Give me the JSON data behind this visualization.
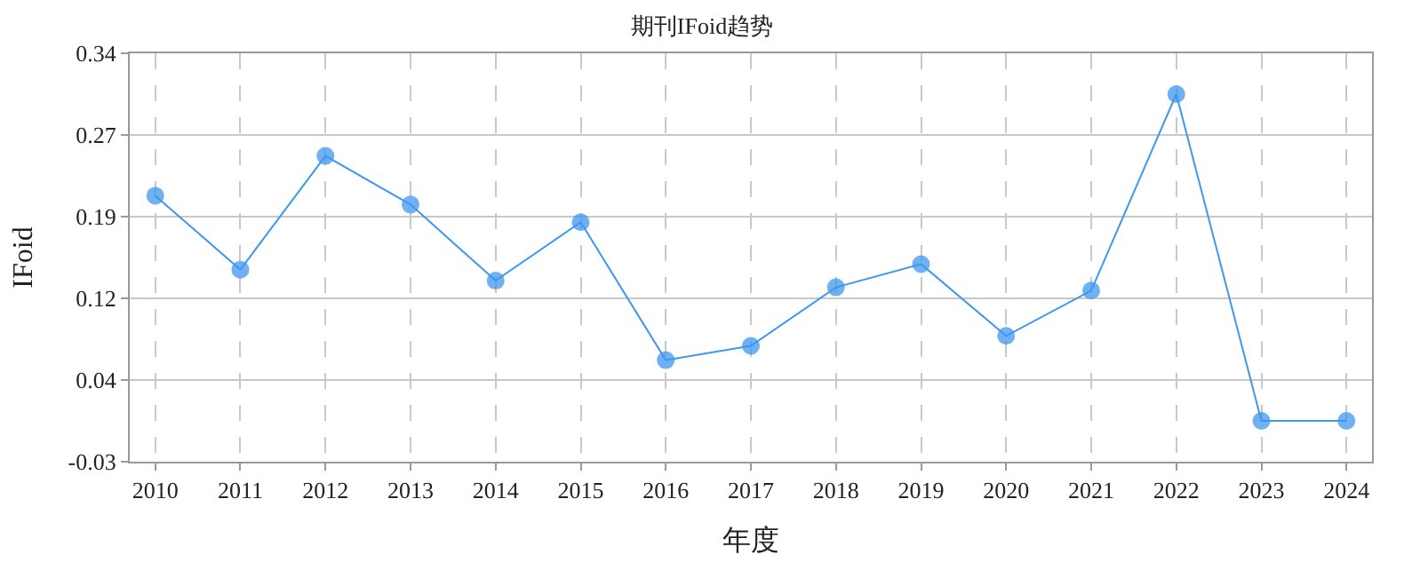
{
  "chart_data": {
    "type": "line",
    "title": "期刊IFoid趋势",
    "xlabel": "年度",
    "ylabel": "IFoid",
    "categories": [
      "2010",
      "2011",
      "2012",
      "2013",
      "2014",
      "2015",
      "2016",
      "2017",
      "2018",
      "2019",
      "2020",
      "2021",
      "2022",
      "2023",
      "2024"
    ],
    "series": [
      {
        "color": "#3f97ee",
        "values": [
          0.211,
          0.144,
          0.247,
          0.203,
          0.134,
          0.187,
          0.062,
          0.075,
          0.128,
          0.149,
          0.084,
          0.125,
          0.303,
          0.007,
          0.007
        ]
      }
    ],
    "ylim": [
      -0.03,
      0.34
    ],
    "yticks": [
      {
        "value": -0.03,
        "label": "-0.03"
      },
      {
        "value": 0.044,
        "label": "0.04"
      },
      {
        "value": 0.118,
        "label": "0.12"
      },
      {
        "value": 0.192,
        "label": "0.19"
      },
      {
        "value": 0.266,
        "label": "0.27"
      },
      {
        "value": 0.34,
        "label": "0.34"
      }
    ],
    "grid": true,
    "marker": "circle",
    "line_style": "solid"
  }
}
